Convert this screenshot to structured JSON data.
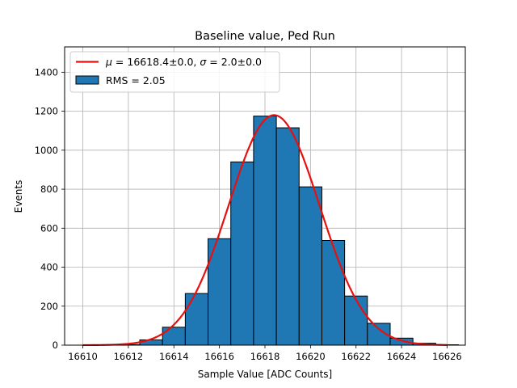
{
  "chart_data": {
    "type": "bar",
    "title": "Baseline value, Ped Run",
    "xlabel": "Sample Value [ADC Counts]",
    "ylabel": "Events",
    "xlim": [
      16609.2,
      16626.8
    ],
    "ylim": [
      0,
      1530
    ],
    "xticks": [
      16610,
      16612,
      16614,
      16616,
      16618,
      16620,
      16622,
      16624,
      16626
    ],
    "yticks": [
      0,
      200,
      400,
      600,
      800,
      1000,
      1200,
      1400
    ],
    "grid": true,
    "legend_placement": "top-left",
    "histogram": {
      "name": "RMS = 2.05",
      "bin_edges": [
        16609.5,
        16610.5,
        16611.5,
        16612.5,
        16613.5,
        16614.5,
        16615.5,
        16616.5,
        16617.5,
        16618.5,
        16619.5,
        16620.5,
        16621.5,
        16622.5,
        16623.5,
        16624.5,
        16625.5,
        16626.5
      ],
      "bin_width": 1.0,
      "values": [
        0,
        2,
        3,
        27,
        92,
        265,
        546,
        940,
        1175,
        1115,
        812,
        537,
        252,
        112,
        36,
        10,
        2
      ],
      "color": "#1f77b4",
      "edge_color": "#000000"
    },
    "fit": {
      "name_parts": {
        "mu_sym": "μ",
        "mu_eq": " = 16618.4±0.0, ",
        "sigma_sym": "σ",
        "sigma_eq": " = 2.0±0.0"
      },
      "function": "gaussian",
      "mu": 16618.4,
      "sigma": 2.0,
      "amplitude": 1180,
      "x_range": [
        16610,
        16626
      ],
      "color": "#e8100e"
    }
  }
}
